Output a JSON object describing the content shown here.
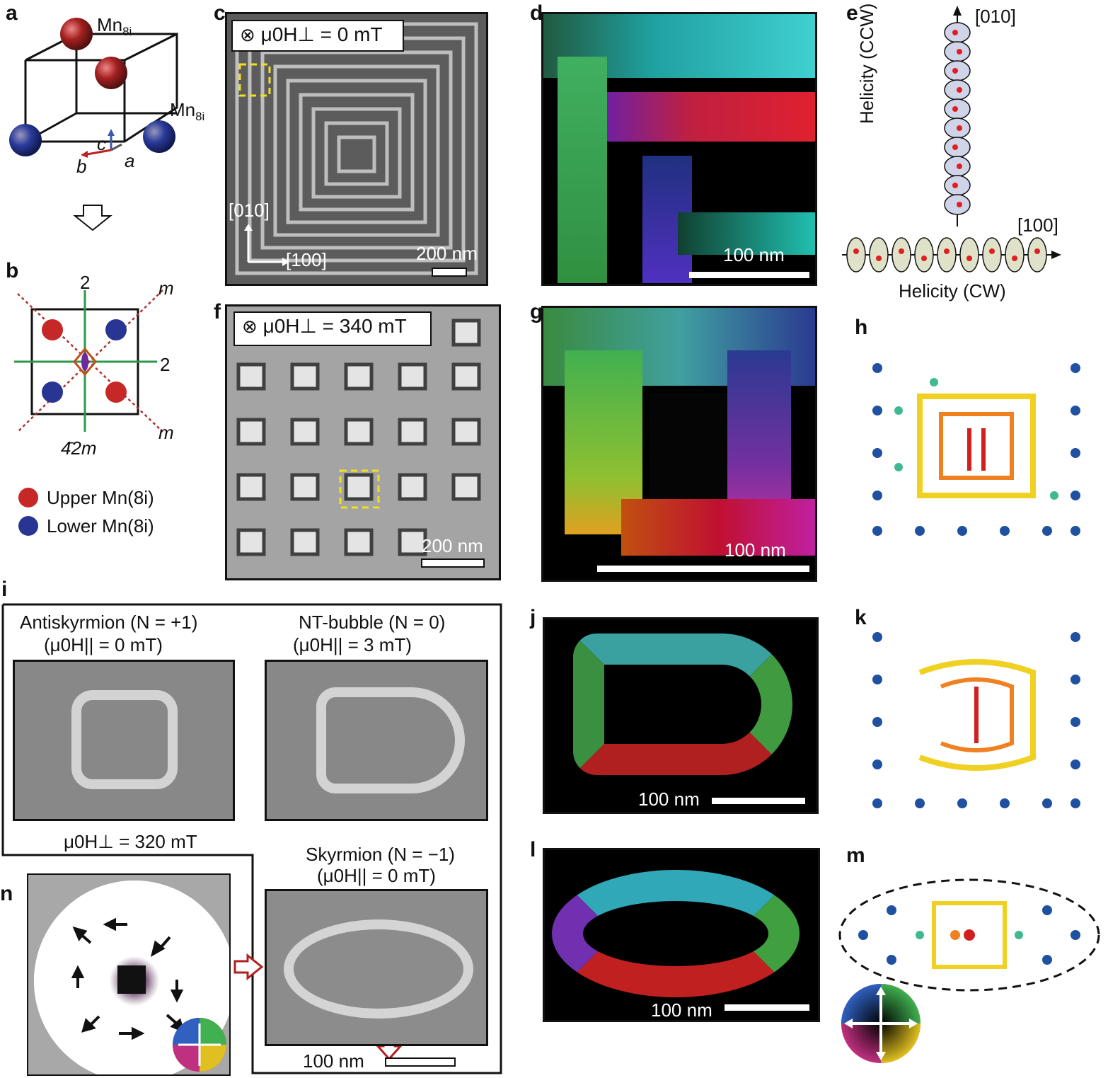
{
  "panels": {
    "a": {
      "label": "a",
      "mn_top": "Mn",
      "mn_top_sub": "8i",
      "mn_side": "Mn",
      "mn_side_sub": "8i",
      "axis_c": "c",
      "axis_b": "b",
      "axis_a": "a"
    },
    "b": {
      "label": "b",
      "two_top": "2",
      "two_right": "2",
      "m_top": "m",
      "m_bottom": "m",
      "point_group": "4̄2m",
      "legend": [
        {
          "text": "Upper Mn(8i)",
          "color": "#c62828"
        },
        {
          "text": "Lower Mn(8i)",
          "color": "#283593"
        }
      ]
    },
    "c": {
      "label": "c",
      "field": "μ0H⊥ = 0 mT",
      "dir_up": "[010]",
      "dir_right": "[100]",
      "scale": "200 nm"
    },
    "d": {
      "label": "d",
      "scale": "100 nm"
    },
    "e": {
      "label": "e",
      "top_dir": "[010]",
      "right_dir": "[100]",
      "ccw": "Helicity (CCW)",
      "cw": "Helicity (CW)"
    },
    "f": {
      "label": "f",
      "field": "μ0H⊥ = 340 mT",
      "scale": "200 nm"
    },
    "g": {
      "label": "g",
      "scale": "100 nm"
    },
    "h": {
      "label": "h"
    },
    "i": {
      "label": "i",
      "anti_title": "Antiskyrmion (N = +1)",
      "anti_field": "(μ0H|| = 0 mT)",
      "nt_title": "NT-bubble (N = 0)",
      "nt_field": "(μ0H|| = 3 mT)",
      "perp_field": "μ0H⊥ = 320 mT",
      "sk_title": "Skyrmion (N = −1)",
      "sk_field": "(μ0H|| = 0 mT)",
      "scale": "100 nm"
    },
    "j": {
      "label": "j",
      "scale": "100 nm"
    },
    "k": {
      "label": "k"
    },
    "l": {
      "label": "l",
      "scale": "100 nm"
    },
    "m": {
      "label": "m"
    },
    "n": {
      "label": "n"
    }
  }
}
